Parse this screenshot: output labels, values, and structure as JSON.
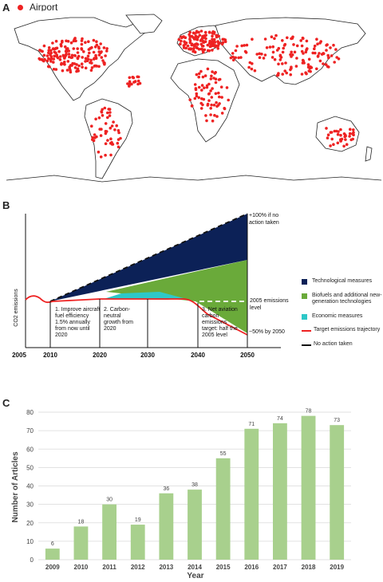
{
  "panels": {
    "a": "A",
    "b": "B",
    "c": "C"
  },
  "panel_a": {
    "legend_label": "Airport",
    "colors": {
      "airport": "#ee2222",
      "land": "#ffffff",
      "border": "#222222"
    }
  },
  "panel_b": {
    "ylabel": "CO2 emissions",
    "x_ticks": [
      "2005",
      "2010",
      "2020",
      "2030",
      "2040",
      "2050"
    ],
    "annotations": {
      "no_action": [
        "+100% if no",
        "action taken"
      ],
      "level_2005": [
        "2005 emissions",
        "level"
      ],
      "minus50": "~50% by 2050",
      "goal1": [
        "1. Improve aircraft",
        "fuel efficiency",
        "1.5% annually",
        "from now until",
        "2020"
      ],
      "goal2": [
        "2. Carbon-",
        "neutral",
        "growth from",
        "2020"
      ],
      "goal3": [
        "3. Net aviation",
        "carbon",
        "emissions",
        "target: half the",
        "2005 level"
      ]
    },
    "legend": [
      {
        "label": "Technological measures",
        "color": "#0c2157",
        "kind": "box"
      },
      {
        "label": "Biofuels and additional new-generation technologies",
        "color": "#6aaa3a",
        "kind": "box"
      },
      {
        "label": "Economic measures",
        "color": "#2ec8c8",
        "kind": "box"
      },
      {
        "label": "Target emissions trajectory",
        "color": "#ee2222",
        "kind": "line"
      },
      {
        "label": "No action taken",
        "color": "#111111",
        "kind": "dash"
      }
    ]
  },
  "chart_data": {
    "type": "bar",
    "categories": [
      "2009",
      "2010",
      "2011",
      "2012",
      "2013",
      "2014",
      "2015",
      "2016",
      "2017",
      "2018",
      "2019"
    ],
    "values": [
      6,
      18,
      30,
      19,
      36,
      38,
      55,
      71,
      74,
      78,
      73
    ],
    "xlabel": "Year",
    "ylabel": "Number of Articles",
    "ylim": [
      0,
      80
    ],
    "yticks": [
      0,
      10,
      20,
      30,
      40,
      50,
      60,
      70,
      80
    ],
    "bar_color": "#a8d08d",
    "grid": true
  }
}
